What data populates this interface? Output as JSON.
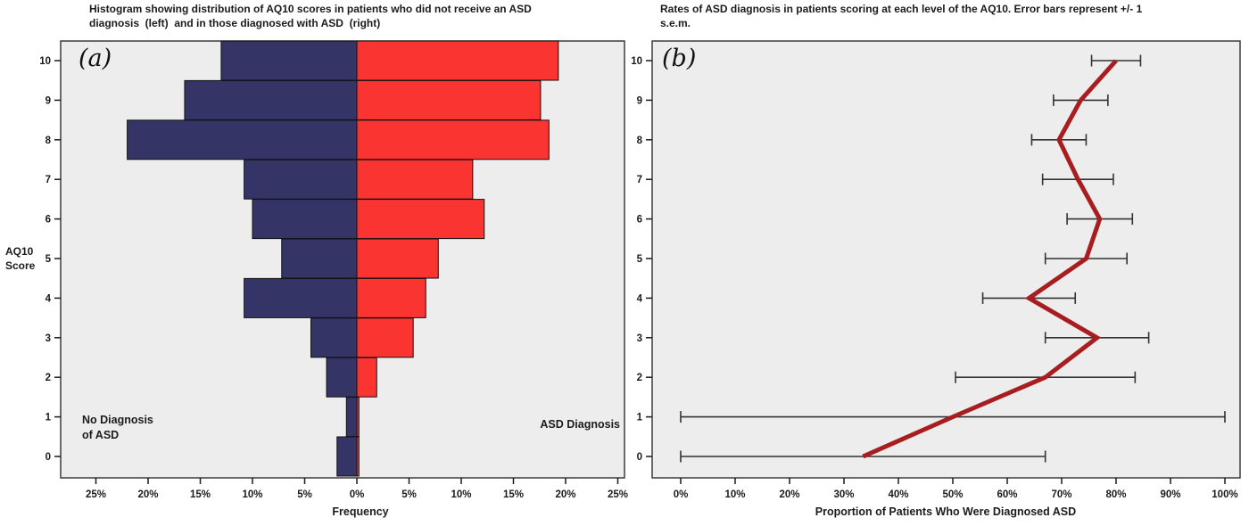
{
  "page": {
    "background": "#ffffff",
    "plot_background": "#ededed",
    "frame_color": "#3c3c3c",
    "text_color": "#1b1b1b"
  },
  "panel_a": {
    "label": "(a)",
    "title": "Histogram showing distribution of AQ10 scores in patients who did not receive an ASD\ndiagnosis  (left)  and in those diagnosed with ASD  (right)",
    "y_axis_label": "AQ10\nScore",
    "x_axis_label": "Frequency",
    "annotation_left": "No Diagnosis\nof ASD",
    "annotation_right": "ASD Diagnosis"
  },
  "panel_b": {
    "label": "(b)",
    "title": "Rates of ASD diagnosis in patients scoring at each level of the AQ10. Error bars represent +/- 1\ns.e.m.",
    "x_axis_label": "Proportion of Patients Who Were Diagnosed ASD"
  },
  "chart_data": [
    {
      "type": "bar",
      "subtype": "back-to-back histogram (population pyramid)",
      "panel": "a",
      "title": "Histogram showing distribution of AQ10 scores in patients who did not receive an ASD diagnosis (left) and in those diagnosed with ASD (right)",
      "xlabel": "Frequency",
      "ylabel": "AQ10 Score",
      "grid": false,
      "y_categories": [
        0,
        1,
        2,
        3,
        4,
        5,
        6,
        7,
        8,
        9,
        10
      ],
      "xlim_pct": [
        -29,
        29
      ],
      "x_ticks": [
        {
          "pct": -25,
          "label": "25%"
        },
        {
          "pct": -20,
          "label": "20%"
        },
        {
          "pct": -15,
          "label": "15%"
        },
        {
          "pct": -10,
          "label": "10%"
        },
        {
          "pct": -5,
          "label": "5%"
        },
        {
          "pct": 0,
          "label": "0%"
        },
        {
          "pct": 5,
          "label": "5%"
        },
        {
          "pct": 10,
          "label": "10%"
        },
        {
          "pct": 15,
          "label": "15%"
        },
        {
          "pct": 20,
          "label": "20%"
        },
        {
          "pct": 25,
          "label": "25%"
        }
      ],
      "series": [
        {
          "name": "No Diagnosis of ASD",
          "side": "left",
          "color": "#343566",
          "values_pct_by_score": [
            1.9,
            1.0,
            2.9,
            4.4,
            10.8,
            7.2,
            10.0,
            10.8,
            22.0,
            16.5,
            13.0
          ]
        },
        {
          "name": "ASD Diagnosis",
          "side": "right",
          "color": "#f93431",
          "values_pct_by_score": [
            0.2,
            0.2,
            1.9,
            5.4,
            6.6,
            7.8,
            12.2,
            11.1,
            18.4,
            17.6,
            19.3
          ]
        }
      ],
      "bar_outline_color": "#101010"
    },
    {
      "type": "line",
      "panel": "b",
      "title": "Rates of ASD diagnosis in patients scoring at each level of the AQ10. Error bars represent +/- 1 s.e.m.",
      "xlabel": "Proportion of Patients Who Were Diagnosed ASD",
      "ylabel": "AQ10 Score",
      "grid": false,
      "scores": [
        0,
        1,
        2,
        3,
        4,
        5,
        6,
        7,
        8,
        9,
        10
      ],
      "proportion_pct_by_score": [
        33.5,
        50,
        67,
        76.5,
        64,
        74.5,
        77,
        73,
        69.5,
        73.5,
        80
      ],
      "sem_pct_by_score": [
        33.5,
        50,
        16.5,
        9.5,
        8.5,
        7.5,
        6,
        6.5,
        5,
        5,
        4.5
      ],
      "xlim_pct": [
        -5.2,
        102.8
      ],
      "x_ticks": [
        {
          "pct": 0,
          "label": "0%"
        },
        {
          "pct": 10,
          "label": "10%"
        },
        {
          "pct": 20,
          "label": "20%"
        },
        {
          "pct": 30,
          "label": "30%"
        },
        {
          "pct": 40,
          "label": "40%"
        },
        {
          "pct": 50,
          "label": "50%"
        },
        {
          "pct": 60,
          "label": "60%"
        },
        {
          "pct": 70,
          "label": "70%"
        },
        {
          "pct": 80,
          "label": "80%"
        },
        {
          "pct": 90,
          "label": "90%"
        },
        {
          "pct": 100,
          "label": "100%"
        }
      ],
      "line_color": "#a81e20",
      "error_bar_color": "#333333"
    }
  ]
}
